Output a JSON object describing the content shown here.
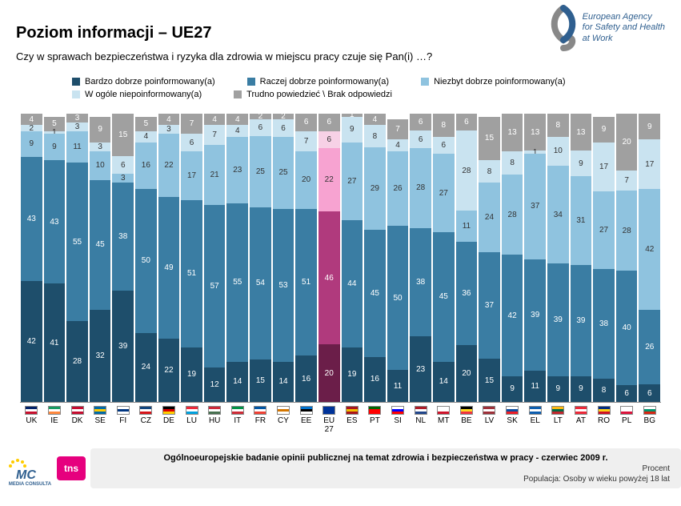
{
  "title": "Poziom informacji – UE27",
  "subtitle": "Czy w sprawach bezpieczeństwa i ryzyka dla zdrowia w miejscu pracy czuje się Pan(i) …?",
  "logo_text": "European Agency\nfor Safety and Health\nat Work",
  "legend": [
    {
      "label": "Bardzo dobrze poinformowany(a)",
      "color": "#1e4e6b"
    },
    {
      "label": "Raczej dobrze poinformowany(a)",
      "color": "#3a7da3"
    },
    {
      "label": "Niezbyt dobrze poinformowany(a)",
      "color": "#8fc3df"
    },
    {
      "label": "W ogóle niepoinformowany(a)",
      "color": "#c9e3f0"
    },
    {
      "label": "Trudno powiedzieć \\ Brak odpowiedzi",
      "color": "#a0a0a0"
    }
  ],
  "chart": {
    "type": "stacked-bar",
    "ylim": [
      0,
      100
    ],
    "bar_gap": 2,
    "font_size": 10,
    "label_color_on_dark": "#ffffff",
    "label_color_on_light": "#333333",
    "highlight_index": 13,
    "highlight_colors": {
      "very_well": "#6b1e49",
      "fairly_well": "#b03a7d",
      "not_very": "#f7a3d1",
      "not_at_all": "#f7d1e6",
      "dk": "#a0a0a0"
    },
    "series_order": [
      "very_well",
      "fairly_well",
      "not_very",
      "not_at_all",
      "dk"
    ],
    "series_colors": {
      "very_well": "#1e4e6b",
      "fairly_well": "#3a7da3",
      "not_very": "#8fc3df",
      "not_at_all": "#c9e3f0",
      "dk": "#a0a0a0"
    },
    "countries": [
      {
        "code": "UK",
        "flag": [
          "#012169",
          "#ffffff",
          "#c8102e"
        ],
        "values": {
          "very_well": 42,
          "fairly_well": 43,
          "not_very": 9,
          "not_at_all": 2,
          "dk": 4
        }
      },
      {
        "code": "IE",
        "flag": [
          "#169b62",
          "#ffffff",
          "#ff883e"
        ],
        "values": {
          "very_well": 41,
          "fairly_well": 43,
          "not_very": 9,
          "not_at_all": 1,
          "dk": 5
        }
      },
      {
        "code": "DK",
        "flag": [
          "#c60c30",
          "#ffffff",
          "#c60c30"
        ],
        "values": {
          "very_well": 28,
          "fairly_well": 55,
          "not_very": 11,
          "not_at_all": 3,
          "dk": 3
        }
      },
      {
        "code": "SE",
        "flag": [
          "#006aa7",
          "#fecc00",
          "#006aa7"
        ],
        "values": {
          "very_well": 32,
          "fairly_well": 45,
          "not_very": 10,
          "not_at_all": 3,
          "dk": 9
        }
      },
      {
        "code": "FI",
        "flag": [
          "#ffffff",
          "#003580",
          "#ffffff"
        ],
        "values": {
          "very_well": 39,
          "fairly_well": 38,
          "not_very": 3,
          "not_at_all": 6,
          "dk": 15
        }
      },
      {
        "code": "CZ",
        "flag": [
          "#11457e",
          "#ffffff",
          "#d7141a"
        ],
        "values": {
          "very_well": 24,
          "fairly_well": 50,
          "not_very": 16,
          "not_at_all": 4,
          "dk": 5
        }
      },
      {
        "code": "DE",
        "flag": [
          "#000000",
          "#dd0000",
          "#ffce00"
        ],
        "values": {
          "very_well": 22,
          "fairly_well": 49,
          "not_very": 22,
          "not_at_all": 3,
          "dk": 4
        }
      },
      {
        "code": "LU",
        "flag": [
          "#ed2939",
          "#ffffff",
          "#00a1de"
        ],
        "values": {
          "very_well": 19,
          "fairly_well": 51,
          "not_very": 17,
          "not_at_all": 6,
          "dk": 7
        }
      },
      {
        "code": "HU",
        "flag": [
          "#ce2939",
          "#ffffff",
          "#477050"
        ],
        "values": {
          "very_well": 12,
          "fairly_well": 57,
          "not_very": 21,
          "not_at_all": 7,
          "dk": 4
        }
      },
      {
        "code": "IT",
        "flag": [
          "#009246",
          "#ffffff",
          "#ce2b37"
        ],
        "values": {
          "very_well": 14,
          "fairly_well": 55,
          "not_very": 23,
          "not_at_all": 4,
          "dk": 4
        }
      },
      {
        "code": "FR",
        "flag": [
          "#0055a4",
          "#ffffff",
          "#ef4135"
        ],
        "values": {
          "very_well": 15,
          "fairly_well": 54,
          "not_very": 25,
          "not_at_all": 6,
          "dk": 2
        }
      },
      {
        "code": "CY",
        "flag": [
          "#ffffff",
          "#d47600",
          "#ffffff"
        ],
        "values": {
          "very_well": 14,
          "fairly_well": 53,
          "not_very": 25,
          "not_at_all": 6,
          "dk": 2
        }
      },
      {
        "code": "EE",
        "flag": [
          "#0072ce",
          "#000000",
          "#ffffff"
        ],
        "values": {
          "very_well": 16,
          "fairly_well": 51,
          "not_very": 20,
          "not_at_all": 7,
          "dk": 6
        }
      },
      {
        "code": "EU\n27",
        "flag": [
          "#003399",
          "#003399",
          "#003399"
        ],
        "values": {
          "very_well": 20,
          "fairly_well": 46,
          "not_very": 22,
          "not_at_all": 6,
          "dk": 6
        }
      },
      {
        "code": "ES",
        "flag": [
          "#aa151b",
          "#f1bf00",
          "#aa151b"
        ],
        "values": {
          "very_well": 19,
          "fairly_well": 44,
          "not_very": 27,
          "not_at_all": 9,
          "dk": 1
        }
      },
      {
        "code": "PT",
        "flag": [
          "#006600",
          "#ff0000",
          "#ff0000"
        ],
        "values": {
          "very_well": 16,
          "fairly_well": 45,
          "not_very": 29,
          "not_at_all": 8,
          "dk": 4
        }
      },
      {
        "code": "SI",
        "flag": [
          "#ffffff",
          "#0000ff",
          "#ff0000"
        ],
        "values": {
          "very_well": 11,
          "fairly_well": 50,
          "not_very": 26,
          "not_at_all": 4,
          "dk": 7
        }
      },
      {
        "code": "NL",
        "flag": [
          "#ae1c28",
          "#ffffff",
          "#21468b"
        ],
        "values": {
          "very_well": 23,
          "fairly_well": 38,
          "not_very": 28,
          "not_at_all": 6,
          "dk": 6
        }
      },
      {
        "code": "MT",
        "flag": [
          "#ffffff",
          "#ffffff",
          "#cf142b"
        ],
        "values": {
          "very_well": 14,
          "fairly_well": 45,
          "not_very": 27,
          "not_at_all": 6,
          "dk": 8
        }
      },
      {
        "code": "BE",
        "flag": [
          "#000000",
          "#fdda24",
          "#ef3340"
        ],
        "values": {
          "very_well": 20,
          "fairly_well": 36,
          "not_very": 11,
          "not_at_all": 28,
          "dk": 6
        }
      },
      {
        "code": "LV",
        "flag": [
          "#9e3039",
          "#ffffff",
          "#9e3039"
        ],
        "values": {
          "very_well": 15,
          "fairly_well": 37,
          "not_very": 24,
          "not_at_all": 8,
          "dk": 15
        }
      },
      {
        "code": "SK",
        "flag": [
          "#ffffff",
          "#0b4ea2",
          "#ee1c25"
        ],
        "values": {
          "very_well": 9,
          "fairly_well": 42,
          "not_very": 28,
          "not_at_all": 8,
          "dk": 13
        }
      },
      {
        "code": "EL",
        "flag": [
          "#0d5eaf",
          "#ffffff",
          "#0d5eaf"
        ],
        "values": {
          "very_well": 11,
          "fairly_well": 39,
          "not_very": 37,
          "not_at_all": 1,
          "dk": 13
        }
      },
      {
        "code": "LT",
        "flag": [
          "#fdb913",
          "#006a44",
          "#c1272d"
        ],
        "values": {
          "very_well": 9,
          "fairly_well": 39,
          "not_very": 34,
          "not_at_all": 10,
          "dk": 8
        }
      },
      {
        "code": "AT",
        "flag": [
          "#ed2939",
          "#ffffff",
          "#ed2939"
        ],
        "values": {
          "very_well": 9,
          "fairly_well": 39,
          "not_very": 31,
          "not_at_all": 9,
          "dk": 13
        }
      },
      {
        "code": "RO",
        "flag": [
          "#002b7f",
          "#fcd116",
          "#ce1126"
        ],
        "values": {
          "very_well": 8,
          "fairly_well": 38,
          "not_very": 27,
          "not_at_all": 17,
          "dk": 9
        }
      },
      {
        "code": "PL",
        "flag": [
          "#ffffff",
          "#ffffff",
          "#dc143c"
        ],
        "values": {
          "very_well": 6,
          "fairly_well": 40,
          "not_very": 28,
          "not_at_all": 7,
          "dk": 20
        }
      },
      {
        "code": "BG",
        "flag": [
          "#ffffff",
          "#00966e",
          "#d62612"
        ],
        "values": {
          "very_well": 6,
          "fairly_well": 26,
          "not_very": 42,
          "not_at_all": 17,
          "dk": 9
        }
      }
    ]
  },
  "footer": {
    "mc_label": "MEDIA CONSULTA",
    "tns_label": "tns",
    "title": "Ogólnoeuropejskie badanie opinii publicznej na temat zdrowia i bezpieczeństwa w pracy - czerwiec 2009 r.",
    "sub1": "Procent",
    "sub2": "Populacja: Osoby w wieku powyżej 18 lat"
  }
}
